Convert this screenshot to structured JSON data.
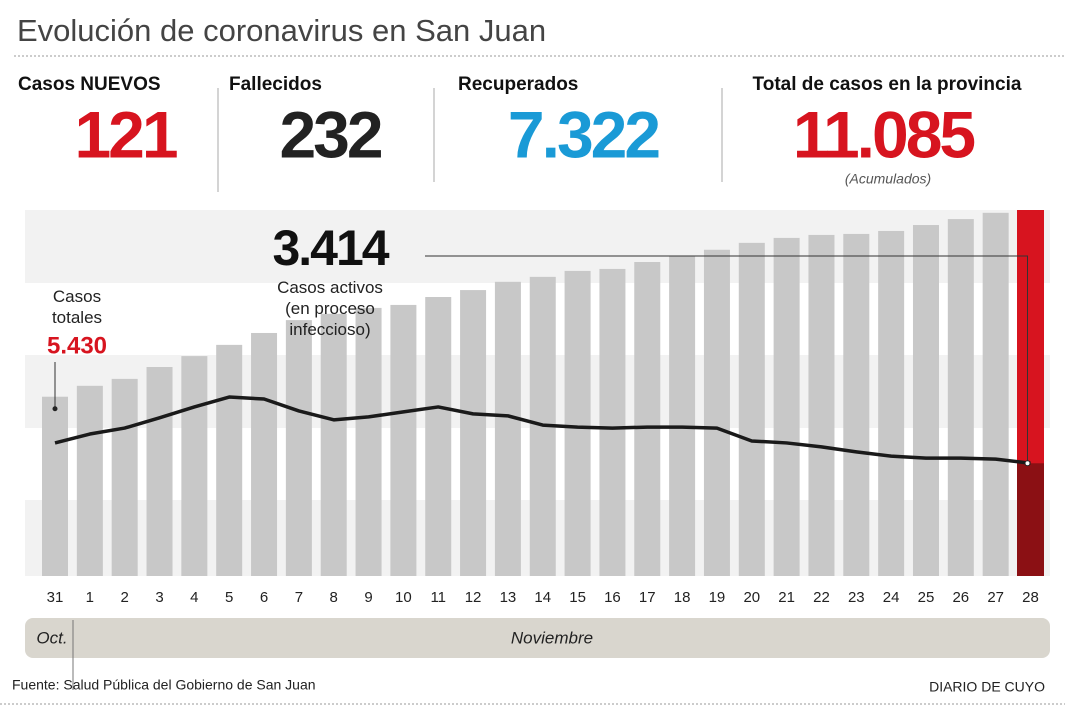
{
  "title": "Evolución de coronavirus en San Juan",
  "stats": [
    {
      "label": "Casos NUEVOS",
      "value": 121,
      "color": "#d7141f"
    },
    {
      "label": "Fallecidos",
      "value": 232,
      "color": "#222222"
    },
    {
      "label": "Recuperados",
      "value": 7322,
      "value_label": "7.322",
      "color": "#1a9ad6"
    },
    {
      "label": "Total de casos en la provincia",
      "value": 11085,
      "value_label": "11.085",
      "note": "(Acumulados)",
      "color": "#d7141f"
    }
  ],
  "chart_data": {
    "type": "combo",
    "categories": [
      "31",
      "1",
      "2",
      "3",
      "4",
      "5",
      "6",
      "7",
      "8",
      "9",
      "10",
      "11",
      "12",
      "13",
      "14",
      "15",
      "16",
      "17",
      "18",
      "19",
      "20",
      "21",
      "22",
      "23",
      "24",
      "25",
      "26",
      "27",
      "28"
    ],
    "months": [
      "Oct.",
      "Noviembre"
    ],
    "series": [
      {
        "name": "Casos totales",
        "color": "#c8c8c8",
        "highlight_color": "#d7141f",
        "label_color": "#d7141f",
        "values": [
          5430,
          5760,
          5970,
          6330,
          6660,
          7000,
          7360,
          7750,
          7940,
          8120,
          8210,
          8450,
          8660,
          8910,
          9060,
          9240,
          9300,
          9510,
          9690,
          9880,
          10090,
          10240,
          10330,
          10360,
          10450,
          10630,
          10810,
          11000,
          11085
        ],
        "value_labels": [
          "5.430",
          null,
          null,
          null,
          null,
          null,
          null,
          null,
          null,
          null,
          null,
          null,
          null,
          null,
          null,
          null,
          null,
          null,
          null,
          null,
          null,
          null,
          null,
          null,
          null,
          null,
          null,
          null,
          null
        ]
      },
      {
        "name": "Casos activos (en proceso infeccioso)",
        "color": "#1a1a1a",
        "highlight_color": "#8b1014",
        "values": [
          4030,
          4300,
          4480,
          4790,
          5120,
          5420,
          5360,
          5000,
          4730,
          4820,
          4970,
          5120,
          4910,
          4850,
          4570,
          4510,
          4480,
          4510,
          4510,
          4480,
          4090,
          4030,
          3910,
          3760,
          3630,
          3570,
          3570,
          3540,
          3414
        ],
        "value_labels": [
          null,
          null,
          null,
          null,
          null,
          null,
          null,
          null,
          null,
          null,
          null,
          null,
          null,
          null,
          null,
          null,
          null,
          null,
          null,
          null,
          null,
          null,
          null,
          null,
          null,
          null,
          null,
          null,
          "3.414"
        ]
      }
    ]
  },
  "source": "Fuente: Salud Pública del Gobierno de San Juan",
  "brand": "DIARIO DE CUYO"
}
